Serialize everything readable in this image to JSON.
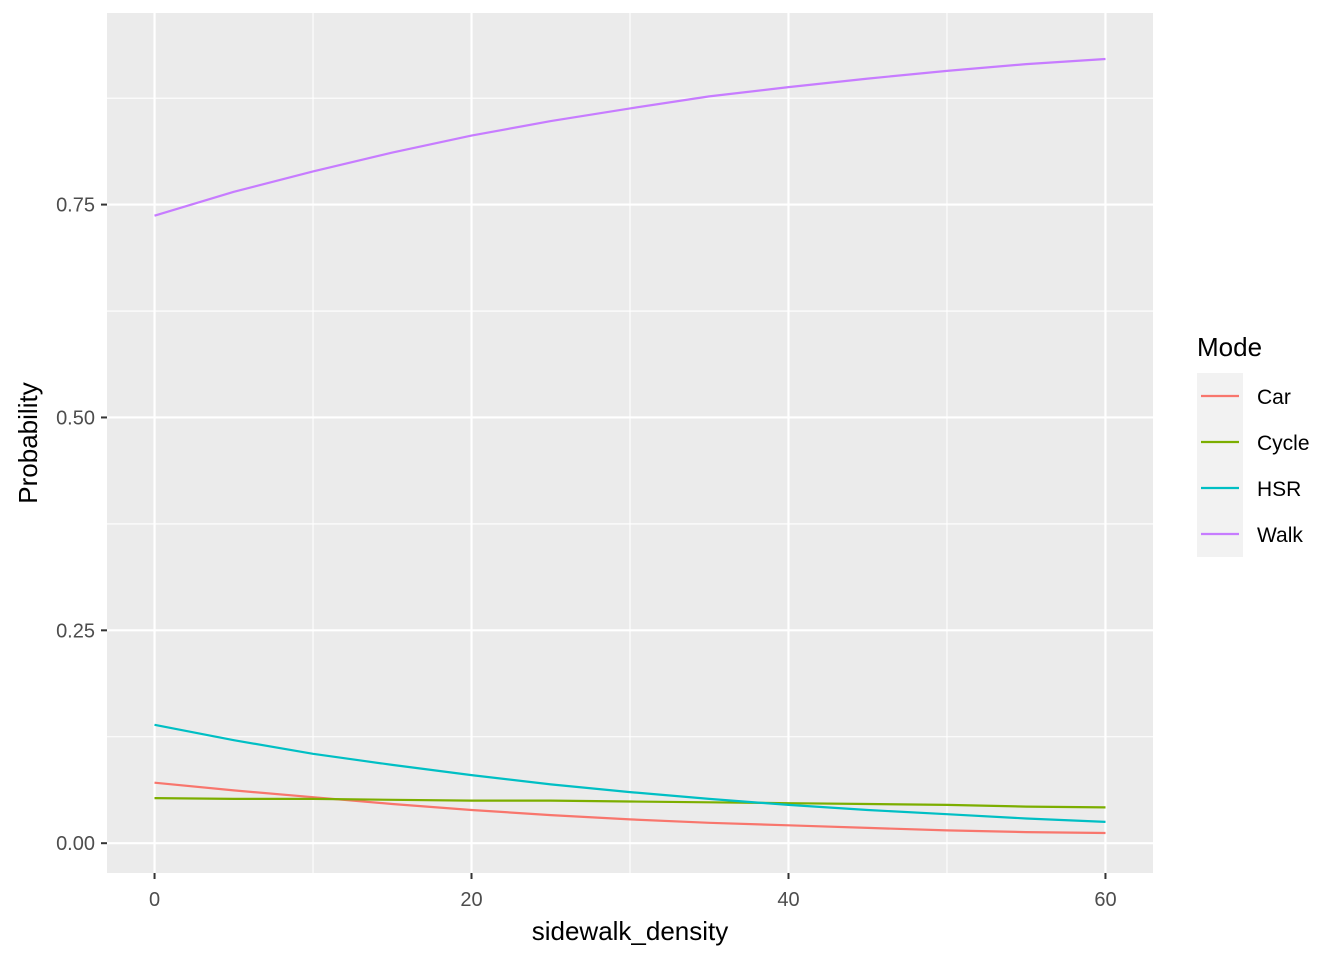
{
  "chart_data": {
    "type": "line",
    "xlabel": "sidewalk_density",
    "ylabel": "Probability",
    "xlim": [
      -3,
      63
    ],
    "ylim": [
      -0.035,
      0.975
    ],
    "x_ticks": [
      0,
      20,
      40,
      60
    ],
    "x_tick_labels": [
      "0",
      "20",
      "40",
      "60"
    ],
    "x_minor_ticks": [
      10,
      30,
      50
    ],
    "y_ticks": [
      0,
      0.25,
      0.5,
      0.75
    ],
    "y_tick_labels": [
      "0.00",
      "0.25",
      "0.50",
      "0.75"
    ],
    "y_minor_ticks": [
      0.125,
      0.375,
      0.625,
      0.875
    ],
    "grid": true,
    "legend": {
      "title": "Mode",
      "position": "right"
    },
    "x": [
      0,
      5,
      10,
      15,
      20,
      25,
      30,
      35,
      40,
      45,
      50,
      55,
      60
    ],
    "series": [
      {
        "name": "Car",
        "color": "#F8766D",
        "values": [
          0.071,
          0.062,
          0.054,
          0.046,
          0.039,
          0.033,
          0.028,
          0.024,
          0.021,
          0.018,
          0.015,
          0.013,
          0.012
        ]
      },
      {
        "name": "Cycle",
        "color": "#7CAE00",
        "values": [
          0.053,
          0.052,
          0.052,
          0.051,
          0.05,
          0.05,
          0.049,
          0.048,
          0.047,
          0.046,
          0.045,
          0.043,
          0.042
        ]
      },
      {
        "name": "HSR",
        "color": "#00BFC4",
        "values": [
          0.139,
          0.121,
          0.105,
          0.092,
          0.08,
          0.069,
          0.06,
          0.052,
          0.045,
          0.039,
          0.034,
          0.029,
          0.025
        ]
      },
      {
        "name": "Walk",
        "color": "#C77CFF",
        "values": [
          0.737,
          0.765,
          0.789,
          0.811,
          0.831,
          0.848,
          0.863,
          0.877,
          0.888,
          0.898,
          0.907,
          0.915,
          0.921
        ]
      }
    ]
  }
}
